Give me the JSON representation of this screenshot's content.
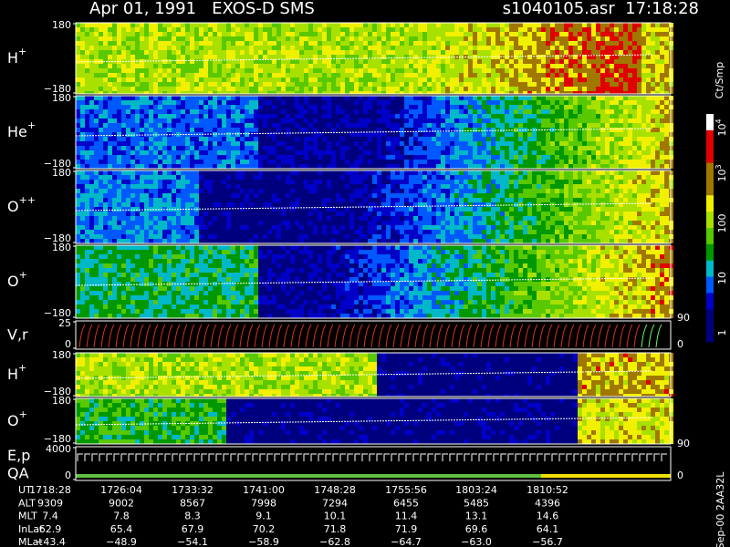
{
  "header": {
    "title": "Apr 01, 1991   EXOS-D SMS",
    "file": "s1040105.asr  17:18:28"
  },
  "panels": [
    {
      "label": "H",
      "sup": "+",
      "ticks": [
        "180",
        "−180"
      ]
    },
    {
      "label": "He",
      "sup": "+",
      "ticks": [
        "180",
        "−180"
      ]
    },
    {
      "label": "O",
      "sup": "++",
      "ticks": [
        "180",
        "−180"
      ]
    },
    {
      "label": "O",
      "sup": "+",
      "ticks": [
        "180",
        "−180"
      ]
    },
    {
      "label": "V,r",
      "ticks": [
        "25",
        "0"
      ],
      "right_ticks": [
        "90",
        "0"
      ]
    },
    {
      "label": "H",
      "sup": "+",
      "ticks": [
        "180",
        "−180"
      ]
    },
    {
      "label": "O",
      "sup": "+",
      "ticks": [
        "180",
        "−180"
      ]
    },
    {
      "label": "E,p",
      "label2": "QA",
      "ticks": [
        "4000",
        "0"
      ],
      "right_ticks": [
        "90",
        "0"
      ]
    }
  ],
  "colorbar": {
    "unit": "Ct/Smp",
    "labels": [
      {
        "base": "10",
        "sup": "4"
      },
      {
        "base": "10",
        "sup": "3"
      },
      {
        "base": "100"
      },
      {
        "base": "10"
      },
      {
        "base": "1"
      }
    ]
  },
  "footer": {
    "rows": [
      {
        "label": "UT",
        "values": [
          "1718:28",
          "1726:04",
          "1733:32",
          "1741:00",
          "1748:28",
          "1755:56",
          "1803:24",
          "1810:52"
        ]
      },
      {
        "label": "ALT",
        "values": [
          "9309",
          "9002",
          "8567",
          "7998",
          "7294",
          "6455",
          "5485",
          "4396"
        ]
      },
      {
        "label": "MLT",
        "values": [
          "7.4",
          "7.8",
          "8.3",
          "9.1",
          "10.1",
          "11.4",
          "13.1",
          "14.6"
        ]
      },
      {
        "label": "InLat",
        "values": [
          "62.9",
          "65.4",
          "67.9",
          "70.2",
          "71.8",
          "71.9",
          "69.6",
          "64.1"
        ]
      },
      {
        "label": "MLat",
        "values": [
          "−43.4",
          "−48.9",
          "−54.1",
          "−58.9",
          "−62.8",
          "−64.7",
          "−63.0",
          "−56.7"
        ]
      }
    ]
  },
  "stamp": "Sep-00 2AA32L"
}
